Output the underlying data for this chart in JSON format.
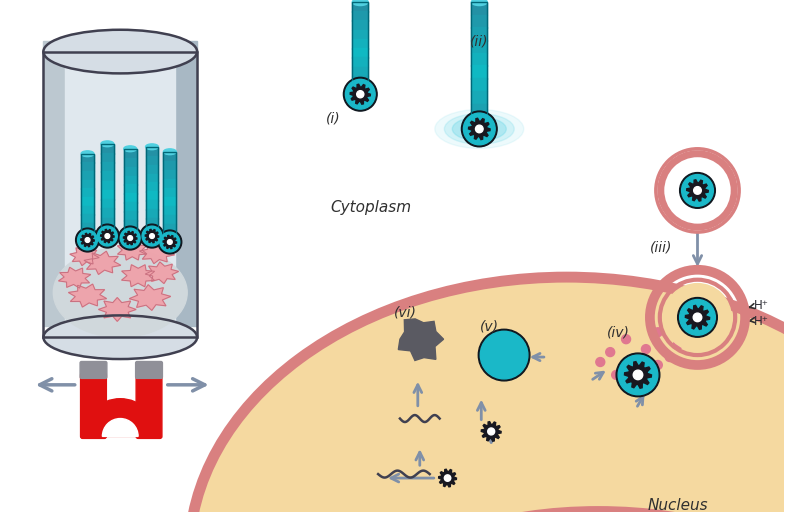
{
  "bg_color": "#ffffff",
  "cell_bg": "#f5d9a0",
  "cell_membrane_color": "#d98080",
  "teal_color": "#1ab8c8",
  "teal_dark": "#007888",
  "teal_light": "#70d8e8",
  "teal_mid": "#30c0d0",
  "pink_cell_color": "#f09090",
  "pink_cell_edge": "#d06060",
  "gray_arrow": "#8090a8",
  "magnet_red": "#e01010",
  "magnet_gray": "#909098",
  "dark_text": "#303030",
  "gear_color": "#181820",
  "labels": [
    "(i)",
    "(ii)",
    "(iii)",
    "(iv)",
    "(v)",
    "(vi)"
  ],
  "text_cytoplasm": "Cytoplasm",
  "text_nucleus": "Nucleus",
  "fig_width": 7.87,
  "fig_height": 5.16
}
